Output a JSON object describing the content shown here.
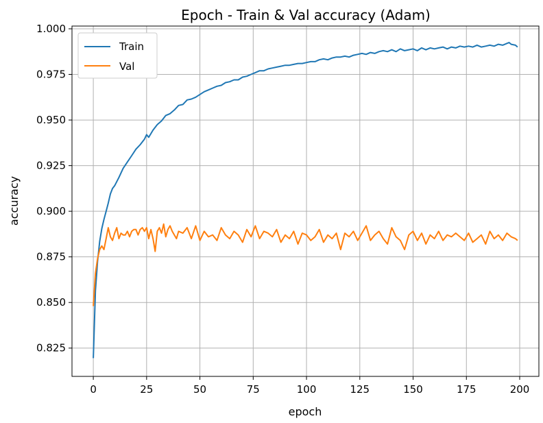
{
  "chart_data": {
    "type": "line",
    "title": "Epoch - Train & Val accuracy (Adam)",
    "xlabel": "epoch",
    "ylabel": "accuracy",
    "xlim": [
      -10,
      209
    ],
    "ylim": [
      0.8095,
      1.0015
    ],
    "xticks": [
      0,
      25,
      50,
      75,
      100,
      125,
      150,
      175,
      200
    ],
    "yticks": [
      0.825,
      0.85,
      0.875,
      0.9,
      0.925,
      0.95,
      0.975,
      1.0
    ],
    "grid": true,
    "legend_position": "upper-left",
    "series": [
      {
        "name": "Train",
        "color": "#1f77b4",
        "x": [
          0,
          1,
          2,
          3,
          4,
          5,
          6,
          7,
          8,
          9,
          10,
          12,
          14,
          16,
          18,
          20,
          22,
          24,
          25,
          26,
          28,
          30,
          32,
          34,
          36,
          38,
          40,
          42,
          44,
          46,
          48,
          50,
          52,
          54,
          56,
          58,
          60,
          62,
          64,
          66,
          68,
          70,
          72,
          74,
          76,
          78,
          80,
          82,
          84,
          86,
          88,
          90,
          92,
          94,
          96,
          98,
          100,
          102,
          104,
          106,
          108,
          110,
          112,
          114,
          116,
          118,
          120,
          122,
          124,
          126,
          128,
          130,
          132,
          134,
          136,
          138,
          140,
          142,
          144,
          146,
          148,
          150,
          152,
          154,
          156,
          158,
          160,
          162,
          164,
          166,
          168,
          170,
          172,
          174,
          176,
          178,
          180,
          182,
          184,
          186,
          188,
          190,
          192,
          194,
          195,
          196,
          198,
          199
        ],
        "y": [
          0.8195,
          0.8565,
          0.8725,
          0.8835,
          0.8905,
          0.8955,
          0.9,
          0.9045,
          0.9095,
          0.9125,
          0.914,
          0.9185,
          0.9235,
          0.927,
          0.9305,
          0.934,
          0.9365,
          0.9395,
          0.942,
          0.9405,
          0.9445,
          0.9475,
          0.9495,
          0.9525,
          0.9535,
          0.9555,
          0.958,
          0.9585,
          0.961,
          0.9615,
          0.9625,
          0.964,
          0.9655,
          0.9665,
          0.9675,
          0.9685,
          0.969,
          0.9705,
          0.971,
          0.972,
          0.972,
          0.9735,
          0.974,
          0.975,
          0.976,
          0.977,
          0.977,
          0.978,
          0.9785,
          0.979,
          0.9795,
          0.98,
          0.98,
          0.9805,
          0.981,
          0.981,
          0.9815,
          0.982,
          0.982,
          0.983,
          0.9835,
          0.983,
          0.984,
          0.9845,
          0.9845,
          0.985,
          0.9845,
          0.9855,
          0.986,
          0.9865,
          0.986,
          0.987,
          0.9865,
          0.9875,
          0.988,
          0.9875,
          0.9885,
          0.9875,
          0.989,
          0.988,
          0.9885,
          0.989,
          0.988,
          0.9895,
          0.9885,
          0.9895,
          0.989,
          0.9895,
          0.99,
          0.989,
          0.99,
          0.9895,
          0.9905,
          0.99,
          0.9905,
          0.99,
          0.991,
          0.99,
          0.9905,
          0.991,
          0.9905,
          0.9915,
          0.991,
          0.992,
          0.9925,
          0.9915,
          0.991,
          0.99
        ]
      },
      {
        "name": "Val",
        "color": "#ff7f0e",
        "x": [
          0,
          1,
          2,
          3,
          4,
          5,
          6,
          7,
          8,
          9,
          10,
          11,
          12,
          13,
          14,
          15,
          16,
          17,
          18,
          19,
          20,
          21,
          22,
          23,
          24,
          25,
          26,
          27,
          28,
          29,
          30,
          31,
          32,
          33,
          34,
          35,
          36,
          37,
          38,
          39,
          40,
          42,
          44,
          46,
          48,
          50,
          52,
          54,
          56,
          58,
          60,
          62,
          64,
          66,
          68,
          70,
          72,
          74,
          76,
          78,
          80,
          82,
          84,
          86,
          88,
          90,
          92,
          94,
          96,
          98,
          100,
          102,
          104,
          106,
          108,
          110,
          112,
          114,
          116,
          118,
          120,
          122,
          124,
          126,
          128,
          130,
          132,
          134,
          136,
          138,
          140,
          142,
          144,
          146,
          148,
          150,
          152,
          154,
          156,
          158,
          160,
          162,
          164,
          166,
          168,
          170,
          172,
          174,
          176,
          178,
          180,
          182,
          184,
          186,
          188,
          190,
          192,
          194,
          196,
          198,
          199
        ],
        "y": [
          0.848,
          0.866,
          0.874,
          0.879,
          0.881,
          0.879,
          0.885,
          0.891,
          0.886,
          0.884,
          0.888,
          0.891,
          0.885,
          0.888,
          0.887,
          0.887,
          0.889,
          0.886,
          0.889,
          0.89,
          0.89,
          0.887,
          0.89,
          0.891,
          0.889,
          0.891,
          0.885,
          0.89,
          0.885,
          0.878,
          0.889,
          0.891,
          0.888,
          0.893,
          0.886,
          0.89,
          0.892,
          0.889,
          0.887,
          0.885,
          0.889,
          0.888,
          0.891,
          0.885,
          0.892,
          0.884,
          0.889,
          0.886,
          0.887,
          0.884,
          0.891,
          0.887,
          0.885,
          0.889,
          0.887,
          0.883,
          0.89,
          0.886,
          0.892,
          0.885,
          0.889,
          0.888,
          0.886,
          0.89,
          0.883,
          0.887,
          0.885,
          0.889,
          0.882,
          0.888,
          0.887,
          0.884,
          0.886,
          0.89,
          0.883,
          0.887,
          0.885,
          0.888,
          0.879,
          0.888,
          0.886,
          0.889,
          0.884,
          0.888,
          0.892,
          0.884,
          0.887,
          0.889,
          0.885,
          0.882,
          0.891,
          0.886,
          0.884,
          0.879,
          0.887,
          0.889,
          0.884,
          0.888,
          0.882,
          0.887,
          0.885,
          0.889,
          0.884,
          0.887,
          0.886,
          0.888,
          0.886,
          0.884,
          0.888,
          0.883,
          0.885,
          0.887,
          0.882,
          0.889,
          0.885,
          0.887,
          0.884,
          0.888,
          0.886,
          0.885,
          0.884
        ]
      }
    ]
  }
}
